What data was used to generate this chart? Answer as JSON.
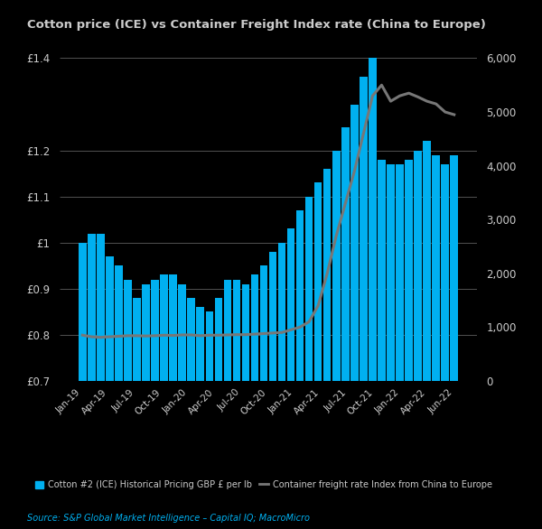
{
  "title": "Cotton price (ICE) vs Container Freight Index rate (China to Europe)",
  "source": "Source: S&P Global Market Intelligence – Capital IQ; MacroMicro",
  "x_labels": [
    "Jan-19",
    "Apr-19",
    "Jul-19",
    "Oct-19",
    "Jan-20",
    "Apr-20",
    "Jul-20",
    "Oct-20",
    "Jan-21",
    "Apr-21",
    "Jul-21",
    "Oct-21",
    "Jan-22",
    "Apr-22",
    "Jun-22"
  ],
  "bar_values": [
    1.0,
    1.02,
    1.02,
    0.97,
    0.95,
    0.92,
    0.88,
    0.91,
    0.92,
    0.93,
    0.93,
    0.91,
    0.88,
    0.86,
    0.85,
    0.88,
    0.92,
    0.92,
    0.91,
    0.93,
    0.95,
    0.98,
    1.0,
    1.03,
    1.07,
    1.1,
    1.13,
    1.16,
    1.2,
    1.25,
    1.3,
    1.36,
    1.42,
    1.18,
    1.17,
    1.17,
    1.18,
    1.2,
    1.22,
    1.19,
    1.17,
    1.19
  ],
  "freight_values": [
    850,
    820,
    810,
    820,
    830,
    840,
    840,
    835,
    840,
    850,
    845,
    855,
    855,
    840,
    850,
    850,
    855,
    860,
    860,
    870,
    880,
    890,
    900,
    950,
    1000,
    1100,
    1400,
    2000,
    2700,
    3300,
    3900,
    4600,
    5300,
    5500,
    5200,
    5300,
    5350,
    5280,
    5200,
    5150,
    5000,
    4950
  ],
  "bar_color": "#00b0f0",
  "line_color": "#777777",
  "background_color": "#000000",
  "text_color": "#cccccc",
  "grid_color": "#ffffff",
  "ylim_left": [
    0.7,
    1.4
  ],
  "ylim_right": [
    0,
    6000
  ],
  "yticks_left": [
    0.7,
    0.8,
    0.9,
    1.0,
    1.1,
    1.2,
    1.4
  ],
  "ytick_labels_left": [
    "£0.7",
    "£0.8",
    "£0.9",
    "£1",
    "£1.1",
    "£1.2",
    "£1.4"
  ],
  "yticks_right": [
    0,
    1000,
    2000,
    3000,
    4000,
    5000,
    6000
  ],
  "ytick_labels_right": [
    "0",
    "1,000",
    "2,000",
    "3,000",
    "4,000",
    "5,000",
    "6,000"
  ],
  "legend_bar_label": "Cotton #2 (ICE) Historical Pricing GBP £ per lb",
  "legend_line_label": "Container freight rate Index from China to Europe"
}
